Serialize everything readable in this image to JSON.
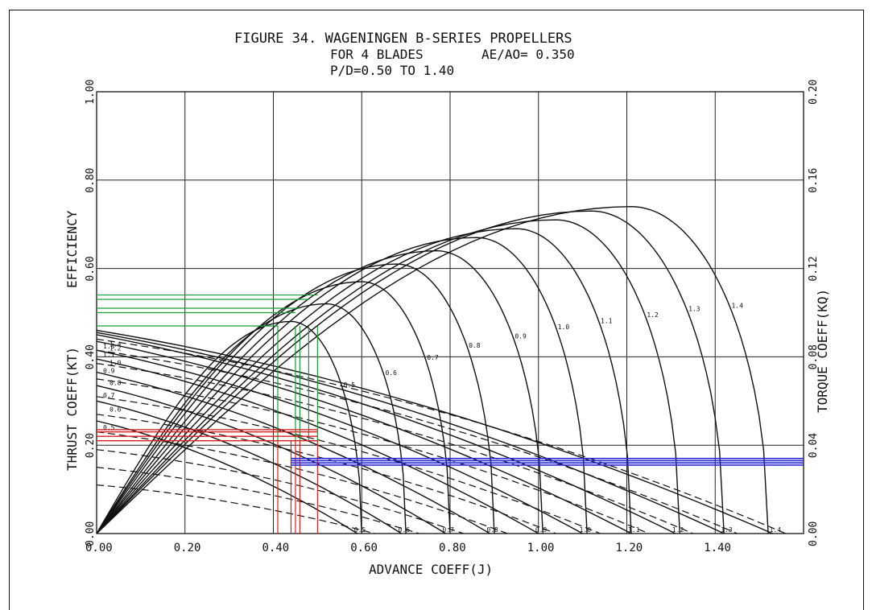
{
  "chart_data": {
    "type": "line",
    "title": [
      "FIGURE 34. WAGENINGEN B-SERIES PROPELLERS",
      "FOR 4 BLADES",
      "AE/AO= 0.350",
      "P/D=0.50 TO 1.40"
    ],
    "xlabel": "ADVANCE COEFF(J)",
    "ylabel_left": [
      "THRUST COEFF(KT)",
      "EFFICIENCY"
    ],
    "ylabel_right": "TORQUE COEFF(KQ)",
    "xlim": [
      0.0,
      1.6
    ],
    "ylim_left": [
      0.0,
      1.0
    ],
    "ylim_right": [
      0.0,
      0.2
    ],
    "x_ticks": [
      "0.00",
      "0.20",
      "0.40",
      "0.60",
      "0.80",
      "1.00",
      "1.20",
      "1.40"
    ],
    "y_ticks_left": [
      "0.00",
      "0.20",
      "0.40",
      "0.60",
      "0.80",
      "1.00"
    ],
    "y_ticks_right": [
      "0.00",
      "0.04",
      "0.08",
      "0.12",
      "0.16",
      "0.20"
    ],
    "grid": true,
    "pd_values": [
      0.5,
      0.6,
      0.7,
      0.8,
      0.9,
      1.0,
      1.1,
      1.2,
      1.3,
      1.4
    ],
    "pd_labels": [
      "0.5",
      "0.6",
      "0.7",
      "0.8",
      "0.9",
      "1.0",
      "1.1",
      "1.2",
      "1.3",
      "1.4"
    ],
    "kt_curves": {
      "j_zero": [
        0.59,
        0.69,
        0.79,
        0.89,
        1.0,
        1.1,
        1.21,
        1.31,
        1.42,
        1.53
      ],
      "kt_at_j0": [
        0.255,
        0.3,
        0.335,
        0.365,
        0.395,
        0.415,
        0.435,
        0.45,
        0.455,
        0.46
      ]
    },
    "kq_curves": {
      "j_zero": [
        0.63,
        0.73,
        0.83,
        0.93,
        1.04,
        1.14,
        1.25,
        1.35,
        1.45,
        1.56
      ],
      "kq_at_j0": [
        0.022,
        0.03,
        0.038,
        0.046,
        0.054,
        0.062,
        0.07,
        0.077,
        0.083,
        0.088
      ]
    },
    "efficiency_curves": {
      "eta_max": [
        0.48,
        0.52,
        0.57,
        0.61,
        0.64,
        0.67,
        0.69,
        0.71,
        0.73,
        0.74
      ],
      "j_peak": [
        0.44,
        0.52,
        0.6,
        0.68,
        0.77,
        0.86,
        0.95,
        1.04,
        1.12,
        1.21
      ],
      "j_zero": [
        0.6,
        0.7,
        0.8,
        0.9,
        1.01,
        1.11,
        1.21,
        1.32,
        1.42,
        1.52
      ]
    },
    "overlays": {
      "green_efficiency": {
        "color": "#1a9a3a",
        "levels": [
          0.47,
          0.5,
          0.51,
          0.53,
          0.54
        ],
        "j": [
          0.41,
          0.45,
          0.46,
          0.48,
          0.5
        ]
      },
      "red_thrust": {
        "color": "#d62020",
        "levels": [
          0.21,
          0.22,
          0.23,
          0.235
        ],
        "j": [
          0.41,
          0.44,
          0.45,
          0.46,
          0.5
        ]
      },
      "blue_torque": {
        "color": "#2a2ad0",
        "levels": [
          0.031,
          0.032,
          0.033,
          0.034
        ],
        "j_from": 0.44
      }
    }
  }
}
